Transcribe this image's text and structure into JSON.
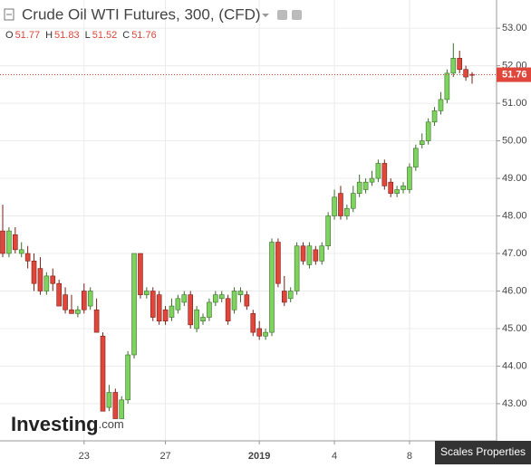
{
  "chart_data": {
    "type": "candlestick",
    "title": "Crude Oil WTI Futures, 300, (CFD)",
    "ohlc_legend": [
      {
        "label": "O",
        "value": 51.77
      },
      {
        "label": "H",
        "value": 51.83
      },
      {
        "label": "L",
        "value": 51.52
      },
      {
        "label": "C",
        "value": 51.76
      }
    ],
    "last_price": {
      "value": 51.76,
      "label": "51.76",
      "color": "#e0463a"
    },
    "watermark": "Investing",
    "watermark_suffix": ".com",
    "button": "Scales Properties",
    "up_color": "#7ed35f",
    "down_color": "#e0463a",
    "ylim": [
      42.01,
      53.75
    ],
    "yticks": [
      {
        "value": 43,
        "label": "43.00"
      },
      {
        "value": 44,
        "label": "44.00"
      },
      {
        "value": 45,
        "label": "45.00"
      },
      {
        "value": 46,
        "label": "46.00"
      },
      {
        "value": 47,
        "label": "47.00"
      },
      {
        "value": 48,
        "label": "48.00"
      },
      {
        "value": 49,
        "label": "49.00"
      },
      {
        "value": 50,
        "label": "50.00"
      },
      {
        "value": 51,
        "label": "51.00"
      },
      {
        "value": 52,
        "label": "52.00"
      },
      {
        "value": 53,
        "label": "53.00"
      }
    ],
    "grid": true,
    "categories": [
      null,
      null,
      null,
      null,
      null,
      null,
      null,
      null,
      null,
      null,
      null,
      null,
      null,
      "23",
      null,
      null,
      null,
      null,
      null,
      null,
      null,
      null,
      null,
      null,
      null,
      null,
      "27",
      null,
      null,
      null,
      null,
      null,
      null,
      null,
      null,
      null,
      null,
      null,
      null,
      null,
      null,
      "2019",
      null,
      null,
      null,
      null,
      null,
      null,
      null,
      null,
      null,
      null,
      null,
      "4",
      null,
      null,
      null,
      null,
      null,
      null,
      null,
      null,
      null,
      null,
      null,
      "8",
      null,
      null,
      null,
      null,
      null,
      null,
      null,
      null,
      null,
      null
    ],
    "open": [
      47.6,
      47.0,
      47.5,
      47.0,
      47.0,
      46.8,
      46.6,
      46.0,
      46.4,
      46.2,
      45.9,
      45.5,
      45.4,
      46.0,
      45.6,
      45.5,
      44.8,
      42.9,
      43.3,
      42.6,
      43.1,
      44.3,
      47.0,
      45.9,
      46.0,
      45.9,
      45.5,
      45.3,
      45.5,
      45.7,
      45.9,
      45.0,
      45.2,
      45.3,
      45.7,
      45.8,
      45.8,
      45.5,
      45.9,
      45.9,
      45.4,
      45.0,
      44.8,
      44.9,
      47.3,
      46.0,
      45.8,
      46.0,
      47.2,
      46.7,
      47.1,
      46.8,
      47.2,
      48.0,
      48.6,
      48.0,
      48.2,
      48.6,
      48.7,
      48.9,
      49.0,
      49.4,
      48.9,
      48.6,
      48.7,
      48.7,
      49.3,
      49.9,
      50.0,
      50.5,
      50.8,
      51.1,
      51.8,
      52.2,
      51.9,
      51.77
    ],
    "high": [
      48.3,
      47.7,
      47.7,
      47.3,
      47.2,
      47.0,
      46.9,
      46.5,
      46.6,
      46.3,
      46.1,
      45.9,
      45.6,
      46.2,
      46.1,
      45.8,
      44.9,
      43.5,
      43.4,
      43.2,
      44.4,
      47.0,
      47.0,
      46.1,
      46.1,
      46.0,
      45.6,
      45.8,
      45.9,
      46.0,
      46.0,
      45.6,
      45.4,
      45.8,
      46.0,
      46.0,
      45.9,
      46.1,
      46.1,
      46.0,
      45.5,
      45.2,
      45.0,
      47.4,
      47.4,
      46.4,
      46.1,
      47.3,
      47.3,
      47.3,
      47.2,
      47.3,
      48.1,
      48.7,
      48.8,
      48.3,
      48.8,
      49.1,
      49.0,
      49.2,
      49.5,
      49.5,
      49.0,
      48.8,
      48.9,
      49.4,
      49.9,
      50.2,
      50.6,
      50.9,
      51.3,
      51.9,
      52.6,
      52.4,
      52.0,
      51.83
    ],
    "low": [
      46.9,
      46.9,
      47.0,
      46.9,
      46.6,
      46.0,
      45.9,
      45.9,
      46.0,
      45.6,
      45.4,
      45.4,
      45.3,
      45.4,
      45.5,
      44.9,
      42.8,
      42.8,
      42.6,
      42.6,
      43.0,
      44.2,
      45.8,
      45.8,
      45.2,
      45.1,
      45.1,
      45.2,
      45.4,
      45.6,
      45.0,
      44.9,
      45.1,
      45.2,
      45.6,
      45.7,
      45.1,
      45.4,
      45.7,
      45.5,
      44.8,
      44.7,
      44.7,
      44.8,
      46.1,
      45.6,
      45.7,
      45.9,
      46.7,
      46.6,
      46.7,
      46.7,
      47.1,
      47.9,
      47.9,
      47.9,
      48.1,
      48.5,
      48.6,
      48.8,
      48.9,
      48.7,
      48.5,
      48.5,
      48.6,
      48.6,
      49.2,
      49.8,
      49.9,
      50.4,
      50.7,
      51.0,
      51.7,
      51.8,
      51.6,
      51.52
    ],
    "close": [
      47.0,
      47.6,
      47.1,
      47.1,
      46.8,
      46.2,
      46.0,
      46.4,
      46.2,
      45.6,
      45.5,
      45.4,
      45.5,
      45.5,
      46.0,
      44.9,
      42.8,
      43.3,
      42.6,
      43.1,
      44.3,
      47.0,
      45.9,
      46.0,
      45.3,
      45.2,
      45.2,
      45.6,
      45.8,
      45.9,
      45.1,
      45.5,
      45.3,
      45.7,
      45.9,
      45.9,
      45.2,
      46.0,
      46.0,
      45.6,
      44.9,
      44.8,
      44.9,
      47.3,
      46.2,
      45.7,
      46.0,
      47.2,
      46.8,
      47.2,
      46.8,
      47.2,
      48.0,
      48.5,
      48.0,
      48.2,
      48.6,
      48.9,
      48.9,
      49.0,
      49.4,
      48.8,
      48.6,
      48.7,
      48.8,
      49.3,
      49.8,
      50.0,
      50.5,
      50.8,
      51.1,
      51.8,
      52.2,
      51.9,
      51.7,
      51.76
    ]
  }
}
